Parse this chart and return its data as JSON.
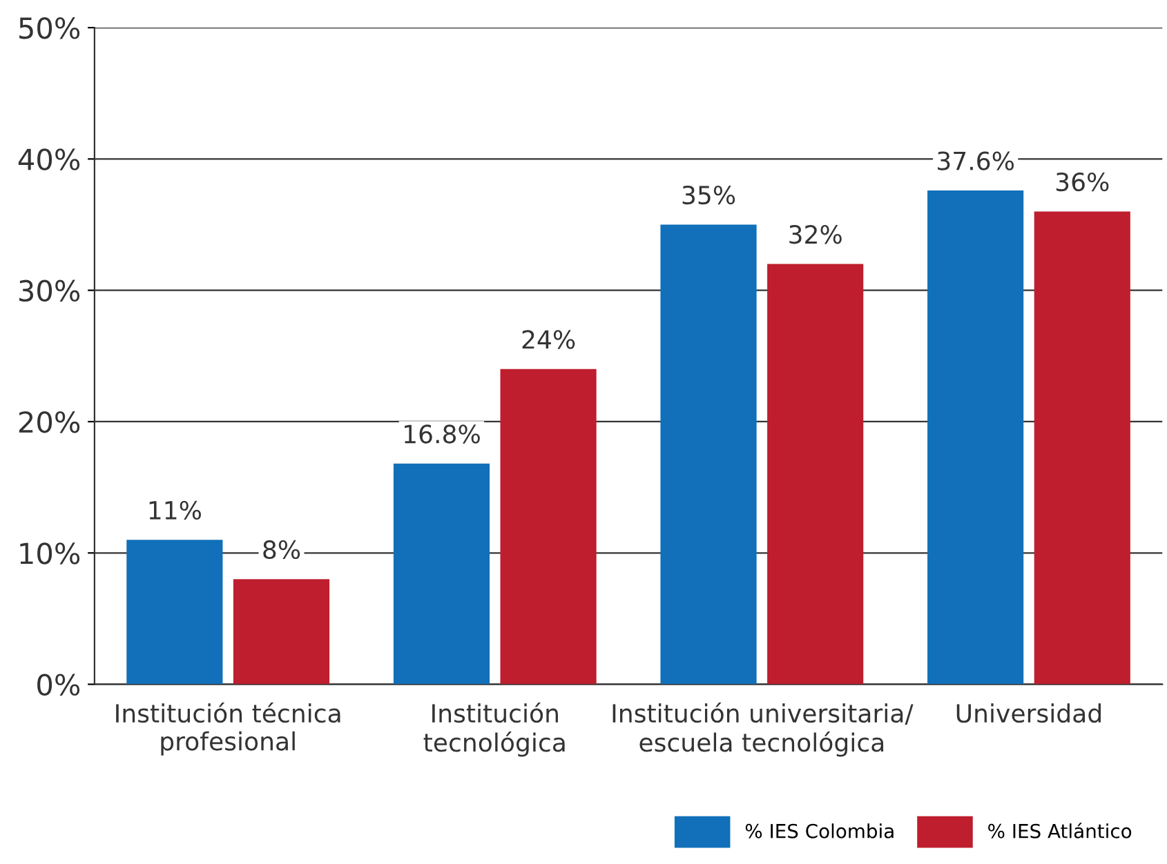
{
  "chart_data": {
    "type": "bar",
    "categories": [
      "Institución técnica\nprofesional",
      "Institución\ntecnológica",
      "Institución universitaria/\nescuela tecnológica",
      "Universidad"
    ],
    "series": [
      {
        "name": "% IES Colombia",
        "color": "#1170b9",
        "values": [
          11,
          16.8,
          35,
          37.6
        ],
        "value_labels": [
          "11%",
          "16.8%",
          "35%",
          "37.6%"
        ]
      },
      {
        "name": "% IES Atlántico",
        "color": "#be1e2d",
        "values": [
          8,
          24,
          32,
          36
        ],
        "value_labels": [
          "8%",
          "24%",
          "32%",
          "36%"
        ]
      }
    ],
    "ylim": [
      0,
      50
    ],
    "yticks": [
      {
        "value": 0,
        "label": "0%"
      },
      {
        "value": 10,
        "label": "10%"
      },
      {
        "value": 20,
        "label": "20%"
      },
      {
        "value": 30,
        "label": "30%"
      },
      {
        "value": 40,
        "label": "40%"
      },
      {
        "value": 50,
        "label": "50%"
      }
    ],
    "grid": "y",
    "legend": "bottom right"
  }
}
